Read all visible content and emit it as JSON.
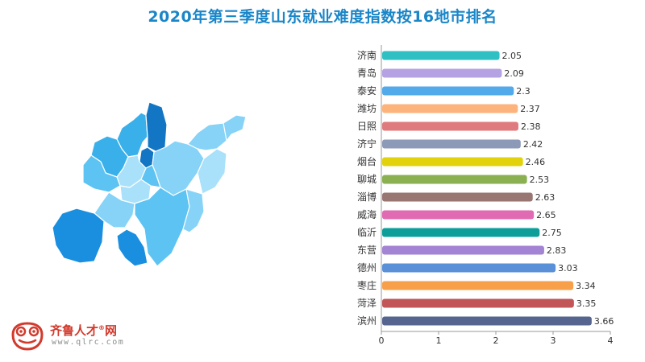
{
  "colors": {
    "title": "#1a86c8",
    "map_palette": [
      "#1276c4",
      "#1a8fe0",
      "#3ab0ea",
      "#5cc3f3",
      "#86d3f7",
      "#a9e0fa",
      "#c9ecfc"
    ],
    "axis": "#999999",
    "logo_red": "#d23a2c"
  },
  "chart_data": {
    "type": "bar",
    "orientation": "horizontal",
    "title": "2020年第三季度山东就业难度指数按16地市排名",
    "categories": [
      "济南",
      "青岛",
      "泰安",
      "潍坊",
      "日照",
      "济宁",
      "烟台",
      "聊城",
      "淄博",
      "威海",
      "临沂",
      "东营",
      "德州",
      "枣庄",
      "菏泽",
      "滨州"
    ],
    "values": [
      2.05,
      2.09,
      2.3,
      2.37,
      2.38,
      2.42,
      2.46,
      2.53,
      2.63,
      2.65,
      2.75,
      2.83,
      3.03,
      3.34,
      3.35,
      3.66
    ],
    "value_labels": [
      "2.05",
      "2.09",
      "2.3",
      "2.37",
      "2.38",
      "2.42",
      "2.46",
      "2.53",
      "2.63",
      "2.65",
      "2.75",
      "2.83",
      "3.03",
      "3.34",
      "3.35",
      "3.66"
    ],
    "bar_colors": [
      "#2fc0c4",
      "#b4a2e3",
      "#52aaea",
      "#fdb37c",
      "#df7b7f",
      "#8d9ab7",
      "#e2d20c",
      "#8ab051",
      "#9a7673",
      "#e06bb2",
      "#0d9e9a",
      "#a283d4",
      "#5a90d8",
      "#f7a049",
      "#c25558",
      "#56658f"
    ],
    "xlim": [
      0,
      4
    ],
    "xticks": [
      "0",
      "1",
      "2",
      "3",
      "4"
    ],
    "xlabel": "",
    "ylabel": "",
    "legend": "none",
    "grid": false
  },
  "logo": {
    "brand": "齐鲁人才",
    "brand_suffix": "网",
    "registered": "®",
    "url": "www.qlrc.com"
  }
}
